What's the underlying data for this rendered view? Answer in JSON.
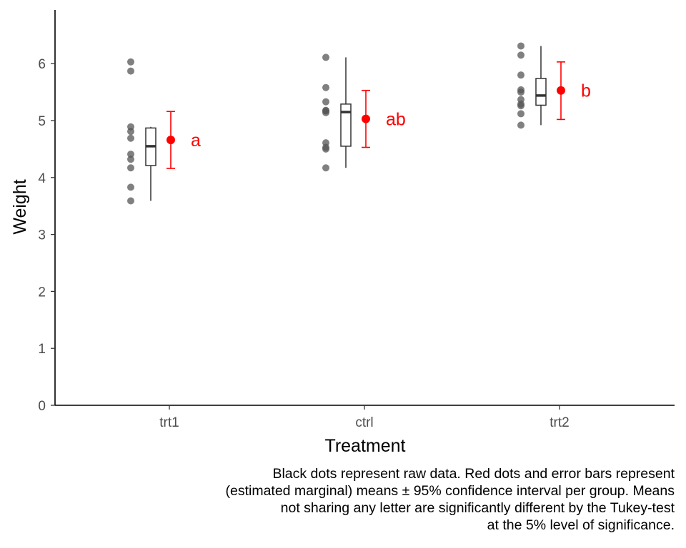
{
  "chart_data": {
    "type": "scatter",
    "xlabel": "Treatment",
    "ylabel": "Weight",
    "ylim": [
      0,
      6.95
    ],
    "y_ticks": [
      "0",
      "1",
      "2",
      "3",
      "4",
      "5",
      "6"
    ],
    "categories": [
      "trt1",
      "ctrl",
      "trt2"
    ],
    "raw_points": {
      "trt1": [
        4.81,
        4.17,
        4.41,
        3.59,
        5.87,
        3.83,
        6.03,
        4.89,
        4.32,
        4.69
      ],
      "ctrl": [
        4.17,
        5.58,
        5.18,
        6.11,
        4.5,
        4.61,
        5.17,
        4.53,
        5.33,
        5.14
      ],
      "trt2": [
        6.31,
        5.12,
        5.54,
        5.5,
        5.37,
        5.29,
        4.92,
        6.15,
        5.8,
        5.26
      ]
    },
    "boxplots": [
      {
        "group": "trt1",
        "min": 3.59,
        "q1": 4.21,
        "median": 4.55,
        "q3": 4.87,
        "max": 4.89
      },
      {
        "group": "ctrl",
        "min": 4.17,
        "q1": 4.55,
        "median": 5.15,
        "q3": 5.29,
        "max": 6.11
      },
      {
        "group": "trt2",
        "min": 4.92,
        "q1": 5.27,
        "median": 5.44,
        "q3": 5.74,
        "max": 6.31
      }
    ],
    "means": [
      {
        "group": "trt1",
        "mean": 4.66,
        "lower": 4.16,
        "upper": 5.16,
        "letter": "a"
      },
      {
        "group": "ctrl",
        "mean": 5.03,
        "lower": 4.53,
        "upper": 5.53,
        "letter": "ab"
      },
      {
        "group": "trt2",
        "mean": 5.53,
        "lower": 5.02,
        "upper": 6.03,
        "letter": "b"
      }
    ],
    "colors": {
      "raw": "#555555",
      "mean": "#ff0000",
      "box": "#333333"
    },
    "grid": false,
    "legend": "none"
  },
  "caption": [
    "Black dots represent raw data. Red dots and error bars represent",
    "(estimated marginal) means ± 95% confidence interval per group. Means",
    "not sharing any letter are significantly different by the Tukey-test",
    "at the 5% level of significance."
  ]
}
